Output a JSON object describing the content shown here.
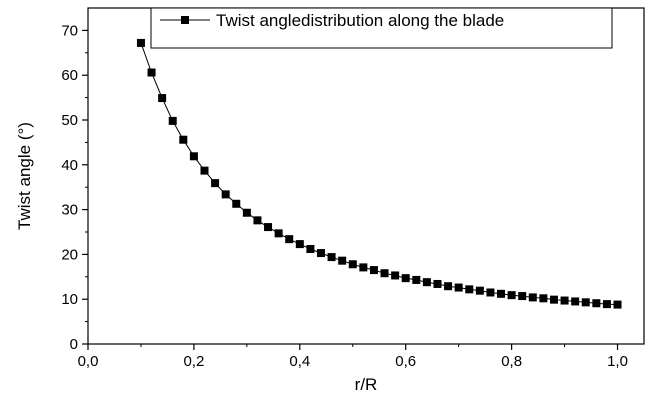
{
  "chart_data": {
    "type": "line",
    "xlabel": "r/R",
    "ylabel": "Twist angle (°)",
    "xlim": [
      0.0,
      1.05
    ],
    "ylim": [
      0,
      75
    ],
    "x_ticks": [
      "0,0",
      "0,2",
      "0,4",
      "0,6",
      "0,8",
      "1,0"
    ],
    "x_tick_values": [
      0.0,
      0.2,
      0.4,
      0.6,
      0.8,
      1.0
    ],
    "y_ticks": [
      "0",
      "10",
      "20",
      "30",
      "40",
      "50",
      "60",
      "70"
    ],
    "y_tick_values": [
      0,
      10,
      20,
      30,
      40,
      50,
      60,
      70
    ],
    "grid": false,
    "legend_position": "top-right",
    "series": [
      {
        "name": "Twist angledistribution along the blade",
        "marker": "square",
        "color": "#000000",
        "x": [
          0.1,
          0.12,
          0.14,
          0.16,
          0.18,
          0.2,
          0.22,
          0.24,
          0.26,
          0.28,
          0.3,
          0.32,
          0.34,
          0.36,
          0.38,
          0.4,
          0.42,
          0.44,
          0.46,
          0.48,
          0.5,
          0.52,
          0.54,
          0.56,
          0.58,
          0.6,
          0.62,
          0.64,
          0.66,
          0.68,
          0.7,
          0.72,
          0.74,
          0.76,
          0.78,
          0.8,
          0.82,
          0.84,
          0.86,
          0.88,
          0.9,
          0.92,
          0.94,
          0.96,
          0.98,
          1.0
        ],
        "values": [
          67.2,
          60.6,
          54.9,
          49.8,
          45.6,
          41.9,
          38.7,
          35.9,
          33.4,
          31.3,
          29.3,
          27.6,
          26.1,
          24.7,
          23.4,
          22.3,
          21.2,
          20.3,
          19.4,
          18.6,
          17.8,
          17.1,
          16.5,
          15.8,
          15.3,
          14.7,
          14.3,
          13.8,
          13.4,
          12.9,
          12.6,
          12.2,
          11.9,
          11.5,
          11.2,
          10.9,
          10.7,
          10.4,
          10.2,
          9.9,
          9.7,
          9.5,
          9.3,
          9.1,
          8.9,
          8.8
        ]
      }
    ]
  }
}
